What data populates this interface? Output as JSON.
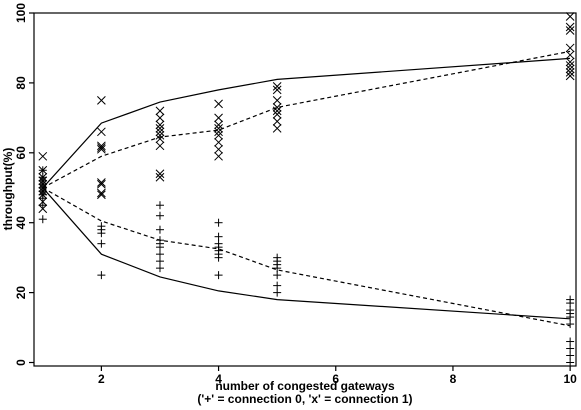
{
  "chart_data": {
    "type": "scatter",
    "xlabel": "number of congested gateways",
    "xlabel_note": "('+' = connection 0, 'x' = connection 1)",
    "ylabel": "throughput(%)",
    "xlim": [
      0.85,
      10.1
    ],
    "ylim": [
      -1,
      100
    ],
    "x_ticks": [
      2,
      4,
      6,
      8,
      10
    ],
    "y_ticks": [
      0,
      20,
      40,
      60,
      80,
      100
    ],
    "series": [
      {
        "marker": "+",
        "points": [
          [
            1,
            41
          ],
          [
            1,
            45
          ],
          [
            1,
            47
          ],
          [
            1,
            48
          ],
          [
            1,
            49
          ],
          [
            1,
            50
          ],
          [
            1,
            51
          ],
          [
            1,
            52
          ],
          [
            1,
            53
          ],
          [
            1,
            55
          ],
          [
            2,
            25
          ],
          [
            2,
            34
          ],
          [
            2,
            37
          ],
          [
            2,
            38
          ],
          [
            2,
            39
          ],
          [
            3,
            27
          ],
          [
            3,
            29
          ],
          [
            3,
            31
          ],
          [
            3,
            33
          ],
          [
            3,
            34
          ],
          [
            3,
            35
          ],
          [
            3,
            38
          ],
          [
            3,
            42
          ],
          [
            3,
            45
          ],
          [
            4,
            25
          ],
          [
            4,
            30
          ],
          [
            4,
            31
          ],
          [
            4,
            32
          ],
          [
            4,
            33
          ],
          [
            4,
            34
          ],
          [
            4,
            36
          ],
          [
            4,
            40
          ],
          [
            5,
            20
          ],
          [
            5,
            22
          ],
          [
            5,
            25
          ],
          [
            5,
            27
          ],
          [
            5,
            28
          ],
          [
            5,
            29
          ],
          [
            5,
            30
          ],
          [
            10,
            0
          ],
          [
            10,
            2
          ],
          [
            10,
            4
          ],
          [
            10,
            6
          ],
          [
            10,
            11
          ],
          [
            10,
            13
          ],
          [
            10,
            14
          ],
          [
            10,
            15
          ],
          [
            10,
            17
          ],
          [
            10,
            18
          ]
        ]
      },
      {
        "marker": "x",
        "points": [
          [
            1,
            44
          ],
          [
            1,
            46
          ],
          [
            1,
            48
          ],
          [
            1,
            49
          ],
          [
            1,
            50
          ],
          [
            1,
            51
          ],
          [
            1,
            52
          ],
          [
            1,
            53
          ],
          [
            1,
            55
          ],
          [
            1,
            59
          ],
          [
            2,
            48
          ],
          [
            2,
            48.5
          ],
          [
            2,
            51
          ],
          [
            2,
            51.5
          ],
          [
            2,
            61
          ],
          [
            2,
            61.5
          ],
          [
            2,
            62
          ],
          [
            2,
            66
          ],
          [
            2,
            75
          ],
          [
            3,
            53
          ],
          [
            3,
            54
          ],
          [
            3,
            62
          ],
          [
            3,
            64
          ],
          [
            3,
            65
          ],
          [
            3,
            66
          ],
          [
            3,
            67
          ],
          [
            3,
            68
          ],
          [
            3,
            70
          ],
          [
            3,
            72
          ],
          [
            4,
            59
          ],
          [
            4,
            61
          ],
          [
            4,
            63
          ],
          [
            4,
            65
          ],
          [
            4,
            66
          ],
          [
            4,
            67
          ],
          [
            4,
            68
          ],
          [
            4,
            70
          ],
          [
            4,
            74
          ],
          [
            5,
            67
          ],
          [
            5,
            69
          ],
          [
            5,
            71
          ],
          [
            5,
            72
          ],
          [
            5,
            73
          ],
          [
            5,
            75
          ],
          [
            5,
            78
          ],
          [
            5,
            79
          ],
          [
            10,
            82
          ],
          [
            10,
            83
          ],
          [
            10,
            84
          ],
          [
            10,
            85
          ],
          [
            10,
            86
          ],
          [
            10,
            88
          ],
          [
            10,
            90
          ],
          [
            10,
            95
          ],
          [
            10,
            96
          ],
          [
            10,
            99
          ]
        ]
      }
    ],
    "lines": [
      {
        "style": "solid",
        "x": [
          1,
          2,
          3,
          4,
          5,
          10
        ],
        "y": [
          50,
          68.5,
          74.5,
          78,
          81,
          87
        ]
      },
      {
        "style": "solid",
        "x": [
          1,
          2,
          3,
          4,
          5,
          10
        ],
        "y": [
          50,
          31,
          24.5,
          20.5,
          18,
          12.5
        ]
      },
      {
        "style": "dashed",
        "x": [
          1,
          2,
          3,
          4,
          5,
          10
        ],
        "y": [
          50,
          59,
          64.5,
          66.5,
          73,
          89
        ]
      },
      {
        "style": "dashed",
        "x": [
          1,
          2,
          3,
          4,
          5,
          10
        ],
        "y": [
          50,
          40.5,
          35,
          32.5,
          26.5,
          10.5
        ]
      }
    ],
    "grid": false,
    "legend": "none"
  }
}
